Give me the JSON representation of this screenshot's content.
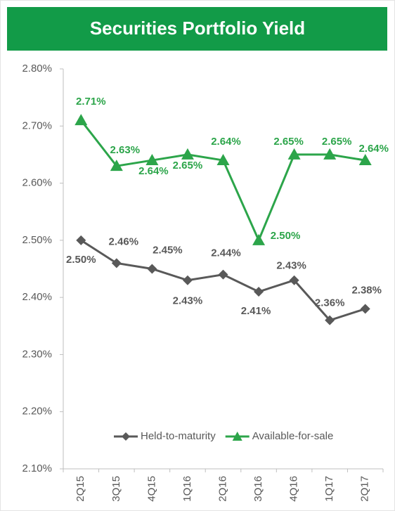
{
  "chart_data": {
    "type": "line",
    "title": "Securities Portfolio Yield",
    "categories": [
      "2Q15",
      "3Q15",
      "4Q15",
      "1Q16",
      "2Q16",
      "3Q16",
      "4Q16",
      "1Q17",
      "2Q17"
    ],
    "series": [
      {
        "name": "Held-to-maturity",
        "color": "#595959",
        "marker": "diamond",
        "values": [
          2.5,
          2.46,
          2.45,
          2.43,
          2.44,
          2.41,
          2.43,
          2.36,
          2.38
        ],
        "value_labels": [
          "2.50%",
          "2.46%",
          "2.45%",
          "2.43%",
          "2.44%",
          "2.41%",
          "2.43%",
          "2.36%",
          "2.38%"
        ]
      },
      {
        "name": "Available-for-sale",
        "color": "#2ca54a",
        "marker": "triangle",
        "values": [
          2.71,
          2.63,
          2.64,
          2.65,
          2.64,
          2.5,
          2.65,
          2.65,
          2.64
        ],
        "value_labels": [
          "2.71%",
          "2.63%",
          "2.64%",
          "2.65%",
          "2.64%",
          "2.50%",
          "2.65%",
          "2.65%",
          "2.64%"
        ]
      }
    ],
    "ylim": [
      2.1,
      2.8
    ],
    "yticks": [
      {
        "value": 2.1,
        "label": "2.10%"
      },
      {
        "value": 2.2,
        "label": "2.20%"
      },
      {
        "value": 2.3,
        "label": "2.30%"
      },
      {
        "value": 2.4,
        "label": "2.40%"
      },
      {
        "value": 2.5,
        "label": "2.50%"
      },
      {
        "value": 2.6,
        "label": "2.60%"
      },
      {
        "value": 2.7,
        "label": "2.70%"
      },
      {
        "value": 2.8,
        "label": "2.80%"
      }
    ],
    "grid": false,
    "legend": "bottom"
  }
}
